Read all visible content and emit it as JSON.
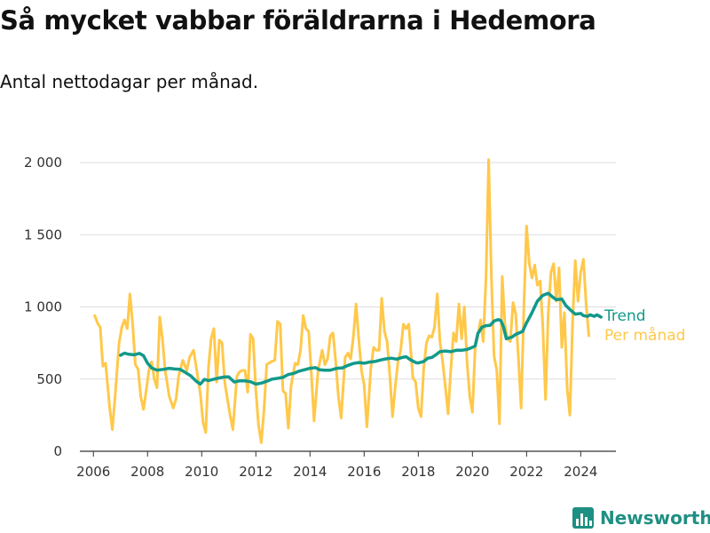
{
  "header": {
    "title": "Så mycket vabbar föräldrarna i Hedemora",
    "subtitle": "Antal nettodagar per månad."
  },
  "brand": {
    "name": "Newsworthy"
  },
  "colors": {
    "trend": "#12998a",
    "monthly": "#ffc84a",
    "grid": "#dddddd",
    "axis": "#333333"
  },
  "chart_data": {
    "type": "line",
    "title": "Så mycket vabbar föräldrarna i Hedemora",
    "subtitle": "Antal nettodagar per månad.",
    "xlabel": "",
    "ylabel": "",
    "xlim": [
      2005.5,
      2025.3
    ],
    "ylim": [
      0,
      2000
    ],
    "x_ticks": [
      2006,
      2008,
      2010,
      2012,
      2014,
      2016,
      2018,
      2020,
      2022,
      2024
    ],
    "x_tick_labels": [
      "2006",
      "2008",
      "2010",
      "2012",
      "2014",
      "2016",
      "2018",
      "2020",
      "2022",
      "2024"
    ],
    "y_ticks": [
      0,
      500,
      1000,
      1500,
      2000
    ],
    "y_tick_labels": [
      "0",
      "500",
      "1 000",
      "1 500",
      "2 000"
    ],
    "grid": true,
    "legend": "right end labels",
    "series": [
      {
        "name": "Trend",
        "color": "#12998a",
        "points": [
          [
            2007.0,
            665
          ],
          [
            2007.15,
            680
          ],
          [
            2007.3,
            672
          ],
          [
            2007.5,
            668
          ],
          [
            2007.7,
            678
          ],
          [
            2007.85,
            662
          ],
          [
            2008.0,
            610
          ],
          [
            2008.15,
            578
          ],
          [
            2008.35,
            562
          ],
          [
            2008.6,
            568
          ],
          [
            2008.8,
            575
          ],
          [
            2009.0,
            570
          ],
          [
            2009.2,
            568
          ],
          [
            2009.4,
            545
          ],
          [
            2009.6,
            522
          ],
          [
            2009.8,
            485
          ],
          [
            2009.95,
            465
          ],
          [
            2010.1,
            498
          ],
          [
            2010.25,
            490
          ],
          [
            2010.45,
            500
          ],
          [
            2010.65,
            508
          ],
          [
            2010.85,
            515
          ],
          [
            2011.0,
            515
          ],
          [
            2011.2,
            480
          ],
          [
            2011.4,
            488
          ],
          [
            2011.6,
            488
          ],
          [
            2011.8,
            482
          ],
          [
            2012.0,
            465
          ],
          [
            2012.2,
            472
          ],
          [
            2012.4,
            485
          ],
          [
            2012.6,
            500
          ],
          [
            2012.8,
            505
          ],
          [
            2013.0,
            512
          ],
          [
            2013.2,
            532
          ],
          [
            2013.4,
            540
          ],
          [
            2013.6,
            555
          ],
          [
            2013.8,
            565
          ],
          [
            2014.0,
            575
          ],
          [
            2014.2,
            580
          ],
          [
            2014.35,
            565
          ],
          [
            2014.55,
            562
          ],
          [
            2014.75,
            562
          ],
          [
            2015.0,
            575
          ],
          [
            2015.2,
            578
          ],
          [
            2015.4,
            595
          ],
          [
            2015.6,
            608
          ],
          [
            2015.8,
            615
          ],
          [
            2016.0,
            610
          ],
          [
            2016.2,
            618
          ],
          [
            2016.4,
            622
          ],
          [
            2016.6,
            632
          ],
          [
            2016.8,
            640
          ],
          [
            2017.0,
            645
          ],
          [
            2017.2,
            638
          ],
          [
            2017.4,
            650
          ],
          [
            2017.55,
            655
          ],
          [
            2017.7,
            635
          ],
          [
            2017.9,
            615
          ],
          [
            2018.0,
            612
          ],
          [
            2018.2,
            622
          ],
          [
            2018.35,
            645
          ],
          [
            2018.5,
            650
          ],
          [
            2018.65,
            668
          ],
          [
            2018.8,
            690
          ],
          [
            2019.0,
            695
          ],
          [
            2019.2,
            690
          ],
          [
            2019.4,
            700
          ],
          [
            2019.6,
            700
          ],
          [
            2019.8,
            705
          ],
          [
            2020.0,
            720
          ],
          [
            2020.1,
            730
          ],
          [
            2020.2,
            815
          ],
          [
            2020.35,
            860
          ],
          [
            2020.5,
            870
          ],
          [
            2020.65,
            872
          ],
          [
            2020.8,
            902
          ],
          [
            2020.95,
            912
          ],
          [
            2021.05,
            905
          ],
          [
            2021.15,
            860
          ],
          [
            2021.25,
            780
          ],
          [
            2021.45,
            790
          ],
          [
            2021.6,
            810
          ],
          [
            2021.85,
            830
          ],
          [
            2022.0,
            890
          ],
          [
            2022.2,
            960
          ],
          [
            2022.4,
            1040
          ],
          [
            2022.6,
            1080
          ],
          [
            2022.8,
            1095
          ],
          [
            2022.95,
            1070
          ],
          [
            2023.1,
            1050
          ],
          [
            2023.3,
            1055
          ],
          [
            2023.45,
            1010
          ],
          [
            2023.6,
            982
          ],
          [
            2023.8,
            950
          ],
          [
            2024.0,
            955
          ],
          [
            2024.1,
            940
          ],
          [
            2024.25,
            935
          ],
          [
            2024.35,
            945
          ],
          [
            2024.5,
            935
          ],
          [
            2024.6,
            945
          ],
          [
            2024.75,
            930
          ]
        ]
      },
      {
        "name": "Per månad",
        "color": "#ffc84a",
        "points": [
          [
            2006.05,
            940
          ],
          [
            2006.15,
            890
          ],
          [
            2006.25,
            860
          ],
          [
            2006.35,
            590
          ],
          [
            2006.45,
            610
          ],
          [
            2006.6,
            300
          ],
          [
            2006.7,
            150
          ],
          [
            2006.8,
            380
          ],
          [
            2006.95,
            750
          ],
          [
            2007.05,
            860
          ],
          [
            2007.15,
            910
          ],
          [
            2007.25,
            850
          ],
          [
            2007.35,
            1090
          ],
          [
            2007.45,
            880
          ],
          [
            2007.55,
            600
          ],
          [
            2007.65,
            570
          ],
          [
            2007.75,
            380
          ],
          [
            2007.85,
            290
          ],
          [
            2007.95,
            420
          ],
          [
            2008.05,
            560
          ],
          [
            2008.15,
            620
          ],
          [
            2008.25,
            500
          ],
          [
            2008.35,
            440
          ],
          [
            2008.45,
            930
          ],
          [
            2008.55,
            780
          ],
          [
            2008.65,
            560
          ],
          [
            2008.8,
            380
          ],
          [
            2008.95,
            300
          ],
          [
            2009.05,
            360
          ],
          [
            2009.15,
            520
          ],
          [
            2009.3,
            630
          ],
          [
            2009.45,
            560
          ],
          [
            2009.55,
            650
          ],
          [
            2009.7,
            700
          ],
          [
            2009.8,
            580
          ],
          [
            2009.95,
            400
          ],
          [
            2010.05,
            200
          ],
          [
            2010.15,
            130
          ],
          [
            2010.25,
            580
          ],
          [
            2010.35,
            780
          ],
          [
            2010.45,
            850
          ],
          [
            2010.55,
            480
          ],
          [
            2010.65,
            770
          ],
          [
            2010.75,
            750
          ],
          [
            2010.85,
            480
          ],
          [
            2010.95,
            360
          ],
          [
            2011.05,
            250
          ],
          [
            2011.15,
            150
          ],
          [
            2011.3,
            520
          ],
          [
            2011.4,
            550
          ],
          [
            2011.5,
            560
          ],
          [
            2011.6,
            560
          ],
          [
            2011.7,
            410
          ],
          [
            2011.8,
            810
          ],
          [
            2011.9,
            780
          ],
          [
            2012.0,
            420
          ],
          [
            2012.1,
            180
          ],
          [
            2012.2,
            60
          ],
          [
            2012.3,
            280
          ],
          [
            2012.4,
            600
          ],
          [
            2012.55,
            620
          ],
          [
            2012.7,
            630
          ],
          [
            2012.8,
            900
          ],
          [
            2012.9,
            880
          ],
          [
            2013.0,
            420
          ],
          [
            2013.1,
            400
          ],
          [
            2013.2,
            160
          ],
          [
            2013.3,
            450
          ],
          [
            2013.45,
            610
          ],
          [
            2013.55,
            600
          ],
          [
            2013.65,
            700
          ],
          [
            2013.75,
            940
          ],
          [
            2013.85,
            850
          ],
          [
            2013.95,
            830
          ],
          [
            2014.05,
            540
          ],
          [
            2014.15,
            210
          ],
          [
            2014.3,
            560
          ],
          [
            2014.45,
            700
          ],
          [
            2014.55,
            600
          ],
          [
            2014.65,
            640
          ],
          [
            2014.75,
            800
          ],
          [
            2014.85,
            820
          ],
          [
            2014.95,
            620
          ],
          [
            2015.05,
            380
          ],
          [
            2015.15,
            230
          ],
          [
            2015.3,
            650
          ],
          [
            2015.4,
            680
          ],
          [
            2015.5,
            640
          ],
          [
            2015.6,
            790
          ],
          [
            2015.7,
            1020
          ],
          [
            2015.8,
            780
          ],
          [
            2015.9,
            560
          ],
          [
            2016.0,
            460
          ],
          [
            2016.1,
            170
          ],
          [
            2016.25,
            580
          ],
          [
            2016.35,
            720
          ],
          [
            2016.45,
            700
          ],
          [
            2016.55,
            700
          ],
          [
            2016.65,
            1060
          ],
          [
            2016.75,
            830
          ],
          [
            2016.85,
            760
          ],
          [
            2016.95,
            520
          ],
          [
            2017.05,
            240
          ],
          [
            2017.15,
            450
          ],
          [
            2017.25,
            620
          ],
          [
            2017.35,
            700
          ],
          [
            2017.45,
            880
          ],
          [
            2017.55,
            850
          ],
          [
            2017.65,
            880
          ],
          [
            2017.8,
            510
          ],
          [
            2017.9,
            480
          ],
          [
            2018.0,
            300
          ],
          [
            2018.1,
            240
          ],
          [
            2018.2,
            570
          ],
          [
            2018.3,
            750
          ],
          [
            2018.4,
            800
          ],
          [
            2018.5,
            790
          ],
          [
            2018.6,
            860
          ],
          [
            2018.7,
            1090
          ],
          [
            2018.8,
            760
          ],
          [
            2018.9,
            620
          ],
          [
            2019.0,
            450
          ],
          [
            2019.1,
            260
          ],
          [
            2019.2,
            560
          ],
          [
            2019.3,
            820
          ],
          [
            2019.4,
            760
          ],
          [
            2019.5,
            1020
          ],
          [
            2019.6,
            780
          ],
          [
            2019.7,
            1000
          ],
          [
            2019.8,
            620
          ],
          [
            2019.9,
            380
          ],
          [
            2020.0,
            270
          ],
          [
            2020.1,
            720
          ],
          [
            2020.2,
            800
          ],
          [
            2020.3,
            910
          ],
          [
            2020.4,
            760
          ],
          [
            2020.5,
            1200
          ],
          [
            2020.6,
            2020
          ],
          [
            2020.7,
            1200
          ],
          [
            2020.8,
            660
          ],
          [
            2020.9,
            560
          ],
          [
            2021.0,
            190
          ],
          [
            2021.1,
            1210
          ],
          [
            2021.2,
            880
          ],
          [
            2021.3,
            780
          ],
          [
            2021.4,
            760
          ],
          [
            2021.5,
            1030
          ],
          [
            2021.6,
            950
          ],
          [
            2021.7,
            640
          ],
          [
            2021.8,
            300
          ],
          [
            2021.9,
            1000
          ],
          [
            2022.0,
            1560
          ],
          [
            2022.1,
            1300
          ],
          [
            2022.2,
            1200
          ],
          [
            2022.3,
            1290
          ],
          [
            2022.4,
            1150
          ],
          [
            2022.5,
            1180
          ],
          [
            2022.6,
            870
          ],
          [
            2022.7,
            360
          ],
          [
            2022.8,
            950
          ],
          [
            2022.9,
            1240
          ],
          [
            2023.0,
            1300
          ],
          [
            2023.1,
            1040
          ],
          [
            2023.2,
            1270
          ],
          [
            2023.3,
            720
          ],
          [
            2023.4,
            960
          ],
          [
            2023.5,
            430
          ],
          [
            2023.6,
            250
          ],
          [
            2023.7,
            900
          ],
          [
            2023.8,
            1320
          ],
          [
            2023.9,
            1040
          ],
          [
            2024.0,
            1240
          ],
          [
            2024.1,
            1330
          ],
          [
            2024.2,
            1020
          ],
          [
            2024.3,
            800
          ]
        ]
      }
    ]
  }
}
